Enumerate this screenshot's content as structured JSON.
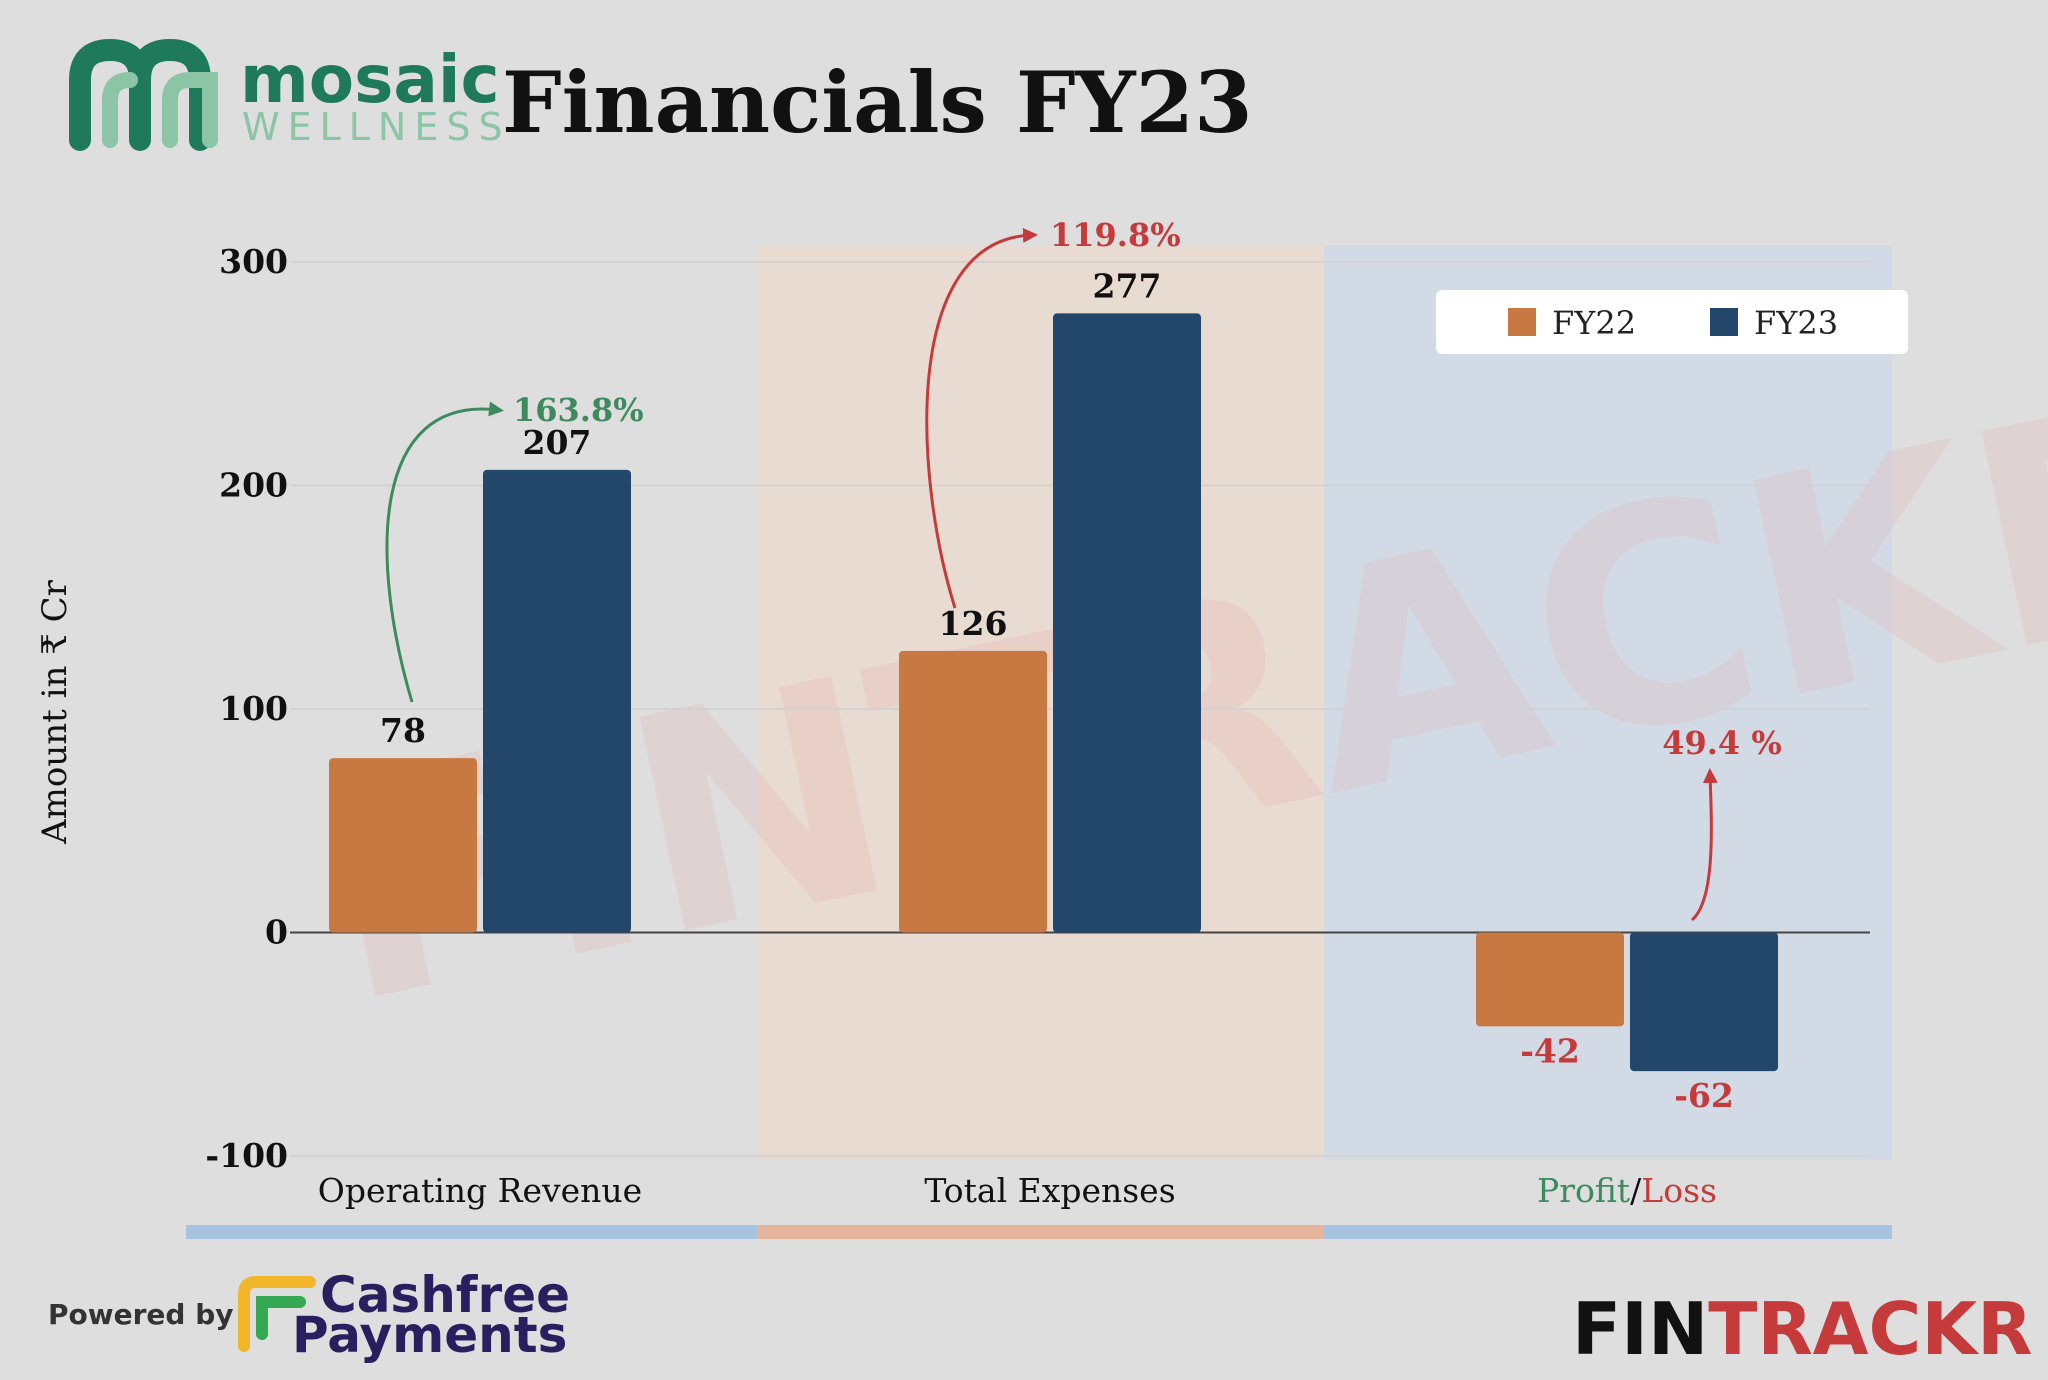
{
  "header": {
    "title": "Financials FY23",
    "logo_top": "mosaic",
    "logo_bottom": "WELLNESS"
  },
  "footer": {
    "powered_by": "Powered by",
    "cashfree_line1": "Cashfree",
    "cashfree_line2": "Payments",
    "fintrackr_a": "FIN",
    "fintrackr_b": "TRACKR"
  },
  "watermark": "FINTRACKR",
  "colors": {
    "fy22": "#c87942",
    "fy23": "#23466b",
    "green": "#3c8a5e",
    "red": "#c53a3a",
    "band_blue": "#a6c3e0",
    "band_orange": "#e5b49a"
  },
  "chart_data": {
    "type": "bar",
    "categories": [
      "Operating Revenue",
      "Total Expenses",
      "Profit/Loss"
    ],
    "category_labels": [
      [
        "Operating Revenue"
      ],
      [
        "Total Expenses"
      ],
      [
        "Profit",
        "/",
        "Loss"
      ]
    ],
    "series": [
      {
        "name": "FY22",
        "values": [
          78,
          126,
          -42
        ]
      },
      {
        "name": "FY23",
        "values": [
          207,
          277,
          -62
        ]
      }
    ],
    "growth_labels": [
      "163.8%",
      "119.8%",
      "49.4 %"
    ],
    "ylabel": "Amount in ₹ Cr",
    "ylim": [
      -100,
      300
    ],
    "yticks": [
      300,
      200,
      100,
      0,
      -100
    ],
    "grid": true,
    "legend_position": "top-right"
  }
}
